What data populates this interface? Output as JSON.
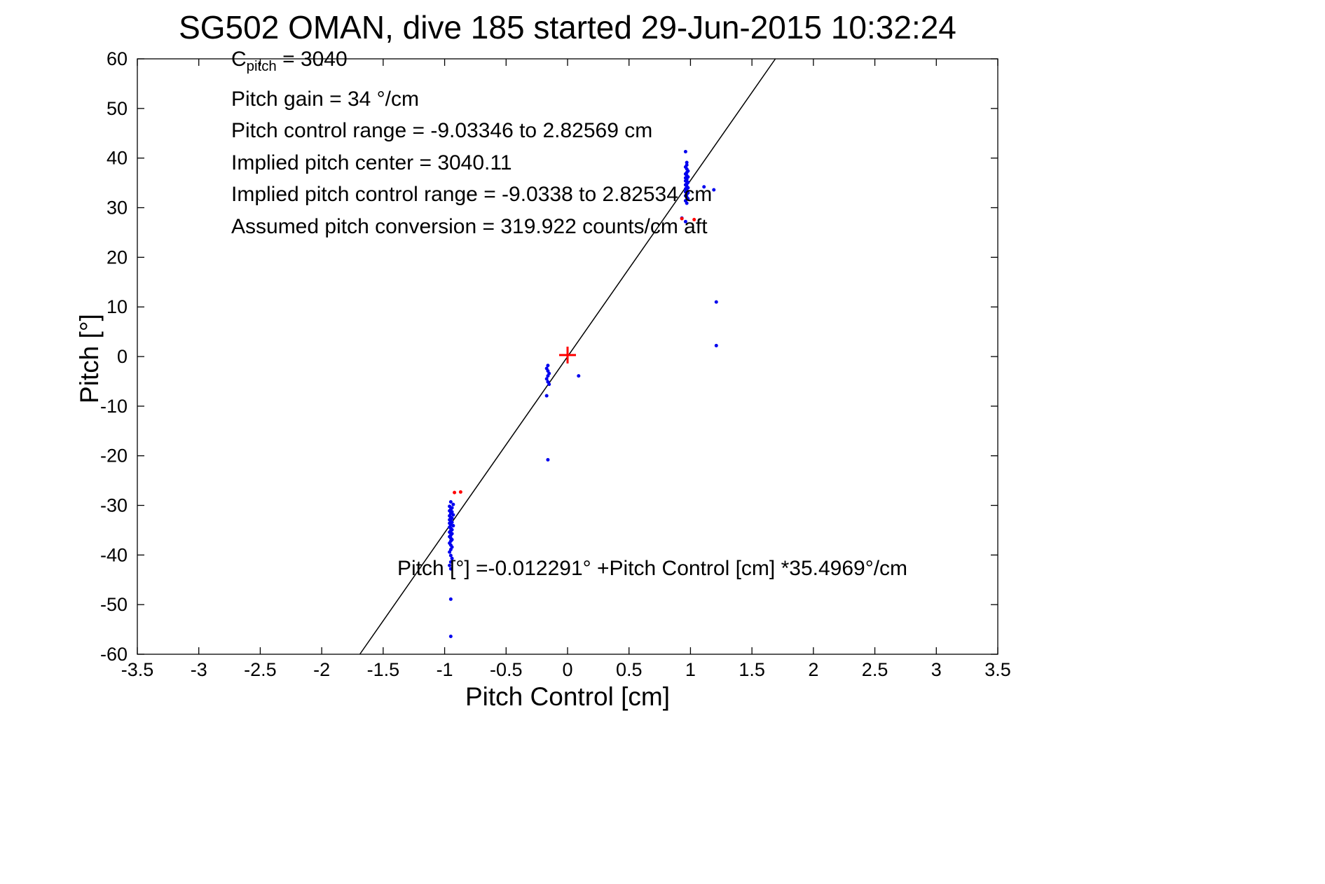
{
  "title": "SG502 OMAN, dive 185 started 29-Jun-2015 10:32:24",
  "chart_data": {
    "type": "scatter",
    "title": "SG502 OMAN, dive 185 started 29-Jun-2015 10:32:24",
    "xlabel": "Pitch Control [cm]",
    "ylabel": "Pitch [°]",
    "xlim": [
      -3.5,
      3.5
    ],
    "ylim": [
      -60,
      60
    ],
    "grid": false,
    "xticks": [
      -3.5,
      -3,
      -2.5,
      -2,
      -1.5,
      -1,
      -0.5,
      0,
      0.5,
      1,
      1.5,
      2,
      2.5,
      3,
      3.5
    ],
    "xtick_labels": [
      "-3.5",
      "-3",
      "-2.5",
      "-2",
      "-1.5",
      "-1",
      "-0.5",
      "0",
      "0.5",
      "1",
      "1.5",
      "2",
      "2.5",
      "3",
      "3.5"
    ],
    "yticks": [
      -60,
      -50,
      -40,
      -30,
      -20,
      -10,
      0,
      10,
      20,
      30,
      40,
      50,
      60
    ],
    "ytick_labels": [
      "-60",
      "-50",
      "-40",
      "-30",
      "-20",
      "-10",
      "0",
      "10",
      "20",
      "30",
      "40",
      "50",
      "60"
    ],
    "annotations": {
      "c_line": {
        "main": "C",
        "sub": "pitch",
        "rest": " = 3040"
      },
      "lines": [
        "Pitch gain = 34 °/cm",
        "Pitch control range = -9.03346 to 2.82569 cm",
        "Implied pitch center = 3040.11",
        "Implied pitch control range = -9.0338 to 2.82534 cm",
        "Assumed pitch conversion = 319.922 counts/cm aft"
      ]
    },
    "fit_line": {
      "intercept": -0.012291,
      "slope": 35.4969,
      "color": "#000000",
      "equation_text": "Pitch [°] =-0.012291° +Pitch Control [cm] *35.4969°/cm"
    },
    "series": [
      {
        "name": "observed-pitch-points",
        "color": "#0000ee",
        "marker": "dot",
        "points": [
          [
            -0.95,
            -29.3
          ],
          [
            -0.93,
            -29.8
          ],
          [
            -0.96,
            -30.2
          ],
          [
            -0.94,
            -30.5
          ],
          [
            -0.95,
            -30.8
          ],
          [
            -0.96,
            -31.1
          ],
          [
            -0.94,
            -31.3
          ],
          [
            -0.95,
            -31.6
          ],
          [
            -0.93,
            -31.9
          ],
          [
            -0.96,
            -32.1
          ],
          [
            -0.95,
            -32.4
          ],
          [
            -0.94,
            -32.6
          ],
          [
            -0.96,
            -32.9
          ],
          [
            -0.95,
            -33.1
          ],
          [
            -0.94,
            -33.4
          ],
          [
            -0.96,
            -33.6
          ],
          [
            -0.95,
            -33.9
          ],
          [
            -0.93,
            -34.1
          ],
          [
            -0.96,
            -34.4
          ],
          [
            -0.95,
            -34.6
          ],
          [
            -0.94,
            -34.9
          ],
          [
            -0.95,
            -35.1
          ],
          [
            -0.96,
            -35.4
          ],
          [
            -0.94,
            -35.7
          ],
          [
            -0.95,
            -36.0
          ],
          [
            -0.96,
            -36.3
          ],
          [
            -0.95,
            -36.6
          ],
          [
            -0.94,
            -36.9
          ],
          [
            -0.95,
            -37.2
          ],
          [
            -0.96,
            -37.6
          ],
          [
            -0.95,
            -38.0
          ],
          [
            -0.94,
            -38.4
          ],
          [
            -0.95,
            -38.9
          ],
          [
            -0.96,
            -39.4
          ],
          [
            -0.95,
            -40.1
          ],
          [
            -0.94,
            -40.7
          ],
          [
            -0.95,
            -41.4
          ],
          [
            -0.96,
            -42.1
          ],
          [
            -0.95,
            -42.8
          ],
          [
            -0.95,
            -48.9
          ],
          [
            -0.95,
            -56.4
          ],
          [
            -0.16,
            -1.8
          ],
          [
            -0.17,
            -2.4
          ],
          [
            -0.16,
            -2.9
          ],
          [
            -0.15,
            -3.4
          ],
          [
            -0.16,
            -3.9
          ],
          [
            -0.17,
            -4.5
          ],
          [
            -0.16,
            -5.1
          ],
          [
            -0.15,
            -5.6
          ],
          [
            -0.17,
            -7.9
          ],
          [
            -0.16,
            -20.8
          ],
          [
            0.09,
            -3.9
          ],
          [
            0.96,
            27.2
          ],
          [
            0.93,
            27.9
          ],
          [
            0.97,
            30.9
          ],
          [
            0.96,
            31.4
          ],
          [
            0.98,
            31.8
          ],
          [
            0.97,
            32.1
          ],
          [
            0.96,
            32.4
          ],
          [
            0.97,
            32.7
          ],
          [
            0.98,
            33.0
          ],
          [
            0.96,
            33.2
          ],
          [
            0.97,
            33.5
          ],
          [
            0.96,
            33.8
          ],
          [
            0.98,
            34.0
          ],
          [
            0.97,
            34.3
          ],
          [
            0.96,
            34.6
          ],
          [
            0.97,
            34.8
          ],
          [
            0.98,
            35.1
          ],
          [
            0.96,
            35.4
          ],
          [
            0.97,
            35.7
          ],
          [
            0.96,
            36.0
          ],
          [
            0.98,
            36.2
          ],
          [
            0.97,
            36.5
          ],
          [
            0.96,
            36.8
          ],
          [
            0.97,
            37.1
          ],
          [
            0.98,
            37.4
          ],
          [
            0.97,
            37.8
          ],
          [
            0.96,
            38.2
          ],
          [
            0.97,
            38.6
          ],
          [
            0.97,
            39.1
          ],
          [
            0.96,
            41.3
          ],
          [
            1.11,
            34.2
          ],
          [
            1.19,
            33.6
          ],
          [
            1.21,
            11.0
          ],
          [
            1.21,
            2.2
          ]
        ]
      },
      {
        "name": "flagged-points",
        "color": "#ff0000",
        "marker": "dot",
        "points": [
          [
            -0.92,
            -27.4
          ],
          [
            -0.87,
            -27.3
          ],
          [
            0.93,
            27.8
          ],
          [
            1.03,
            27.6
          ]
        ]
      },
      {
        "name": "implied-center-marker",
        "color": "#ff0000",
        "marker": "plus",
        "points": [
          [
            0,
            0.3
          ]
        ]
      }
    ]
  }
}
